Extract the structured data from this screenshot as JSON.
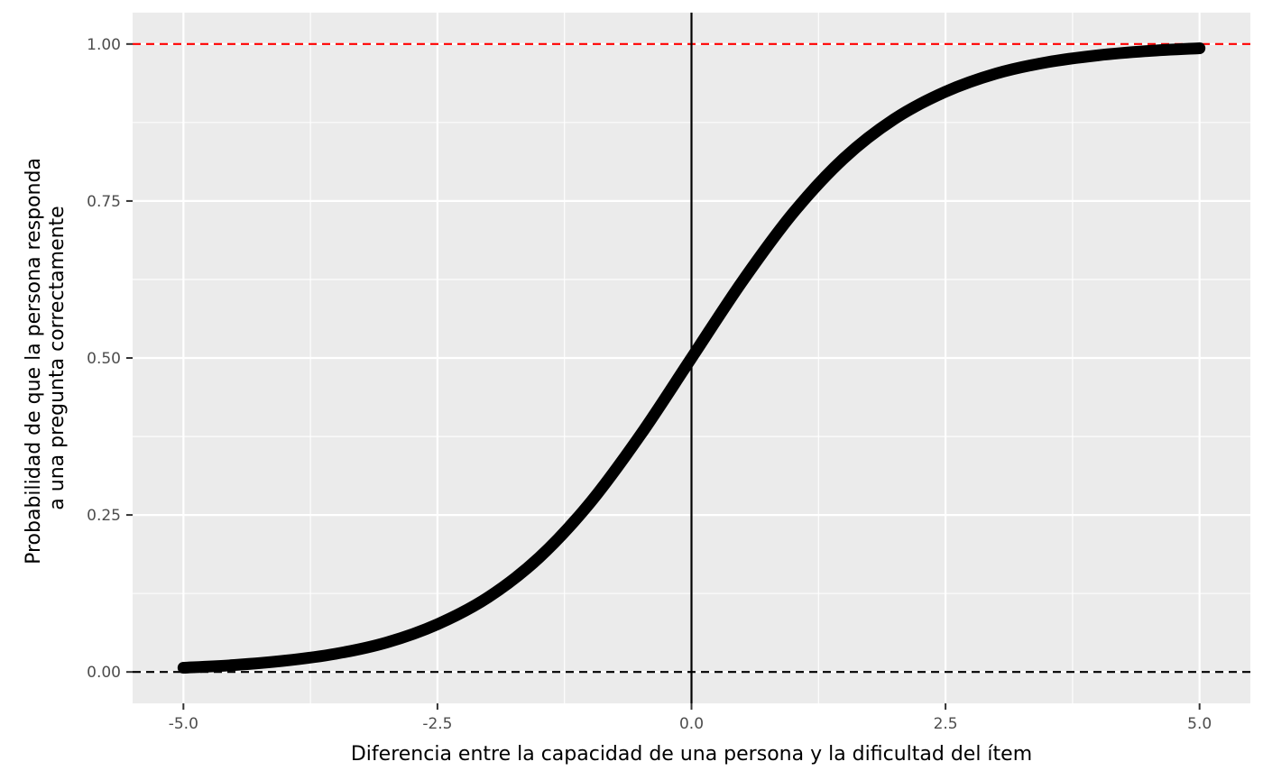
{
  "chart_data": {
    "type": "line",
    "title": "",
    "xlabel": "Diferencia entre la capacidad de una persona y la dificultad del ítem",
    "ylabel_lines": [
      "Probabilidad de que la persona responda",
      "a una pregunta correctamente"
    ],
    "xlim": [
      -5.5,
      5.5
    ],
    "ylim": [
      -0.05,
      1.05
    ],
    "x_ticks": [
      -5.0,
      -2.5,
      0.0,
      2.5,
      5.0
    ],
    "x_tick_labels": [
      "-5.0",
      "-2.5",
      "0.0",
      "2.5",
      "5.0"
    ],
    "y_ticks": [
      0.0,
      0.25,
      0.5,
      0.75,
      1.0
    ],
    "y_tick_labels": [
      "0.00",
      "0.25",
      "0.50",
      "0.75",
      "1.00"
    ],
    "grid": true,
    "legend": "none",
    "background": "#ebebeb",
    "series": [
      {
        "x": [
          -5.0,
          -4.5,
          -4.0,
          -3.5,
          -3.0,
          -2.5,
          -2.0,
          -1.5,
          -1.0,
          -0.5,
          0.0,
          0.5,
          1.0,
          1.5,
          2.0,
          2.5,
          3.0,
          3.5,
          4.0,
          4.5,
          5.0
        ],
        "y": [
          0.0067,
          0.011,
          0.018,
          0.029,
          0.047,
          0.076,
          0.119,
          0.182,
          0.269,
          0.378,
          0.5,
          0.622,
          0.731,
          0.818,
          0.881,
          0.924,
          0.953,
          0.971,
          0.982,
          0.989,
          0.9933
        ],
        "color": "#000000"
      }
    ],
    "reference_lines": [
      {
        "orientation": "horizontal",
        "value": 1.0,
        "color": "#ff0000",
        "style": "dashed"
      },
      {
        "orientation": "horizontal",
        "value": 0.0,
        "color": "#000000",
        "style": "dashed"
      },
      {
        "orientation": "vertical",
        "value": 0.0,
        "color": "#000000",
        "style": "solid"
      }
    ]
  }
}
